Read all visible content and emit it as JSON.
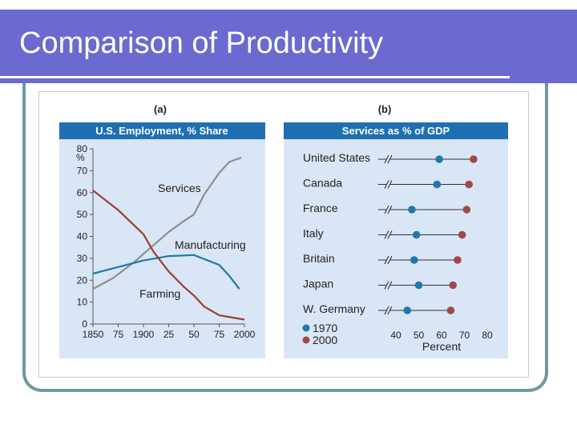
{
  "slide": {
    "title": "Comparison of Productivity",
    "colors": {
      "title_bg": "#6a6ad0",
      "title_text": "#ffffff",
      "frame": "#6e9a9e"
    }
  },
  "chart_data": [
    {
      "type": "line",
      "panel_label": "(a)",
      "title": "U.S. Employment, % Share",
      "ylabel": "%",
      "ylim": [
        0,
        80
      ],
      "yticks": [
        0,
        10,
        20,
        30,
        40,
        50,
        60,
        70,
        80
      ],
      "xlim": [
        1850,
        2000
      ],
      "xticks": [
        1850,
        1875,
        1900,
        1925,
        1950,
        1975,
        2000
      ],
      "xtick_labels": [
        "1850",
        "75",
        "1900",
        "25",
        "50",
        "75",
        "2000"
      ],
      "colors": {
        "header_bg": "#1f6fb2",
        "plot_bg": "#d9e6f5",
        "text": "#222222"
      },
      "series": [
        {
          "name": "Services",
          "color": "#8e8e8e",
          "points": [
            [
              1850,
              16
            ],
            [
              1870,
              21
            ],
            [
              1890,
              28
            ],
            [
              1910,
              36
            ],
            [
              1925,
              42
            ],
            [
              1940,
              47
            ],
            [
              1950,
              50
            ],
            [
              1960,
              59
            ],
            [
              1975,
              69
            ],
            [
              1985,
              74
            ],
            [
              1997,
              76
            ]
          ]
        },
        {
          "name": "Manufacturing",
          "color": "#1f78a8",
          "points": [
            [
              1850,
              23
            ],
            [
              1875,
              26
            ],
            [
              1900,
              29
            ],
            [
              1925,
              31
            ],
            [
              1950,
              31.5
            ],
            [
              1975,
              27
            ],
            [
              1985,
              22
            ],
            [
              1995,
              16
            ]
          ]
        },
        {
          "name": "Farming",
          "color": "#9c3d3d",
          "points": [
            [
              1850,
              61
            ],
            [
              1875,
              52
            ],
            [
              1900,
              41
            ],
            [
              1910,
              33
            ],
            [
              1925,
              24
            ],
            [
              1940,
              17
            ],
            [
              1950,
              13
            ],
            [
              1960,
              8
            ],
            [
              1975,
              4
            ],
            [
              2000,
              2
            ]
          ]
        }
      ]
    },
    {
      "type": "scatter",
      "panel_label": "(b)",
      "title": "Services as % of GDP",
      "xlabel": "Percent",
      "xlim": [
        40,
        80
      ],
      "xticks": [
        40,
        50,
        60,
        70,
        80
      ],
      "colors": {
        "header_bg": "#1f6fb2",
        "plot_bg": "#d9e6f5",
        "text": "#222222",
        "line": "#333333"
      },
      "categories": [
        "United States",
        "Canada",
        "France",
        "Italy",
        "Britain",
        "Japan",
        "W. Germany"
      ],
      "series": [
        {
          "name": "1970",
          "color": "#1f78a8",
          "values": [
            59,
            58,
            47,
            49,
            48,
            50,
            45
          ]
        },
        {
          "name": "2000",
          "color": "#a04848",
          "values": [
            74,
            72,
            71,
            69,
            67,
            65,
            64
          ]
        }
      ]
    }
  ]
}
